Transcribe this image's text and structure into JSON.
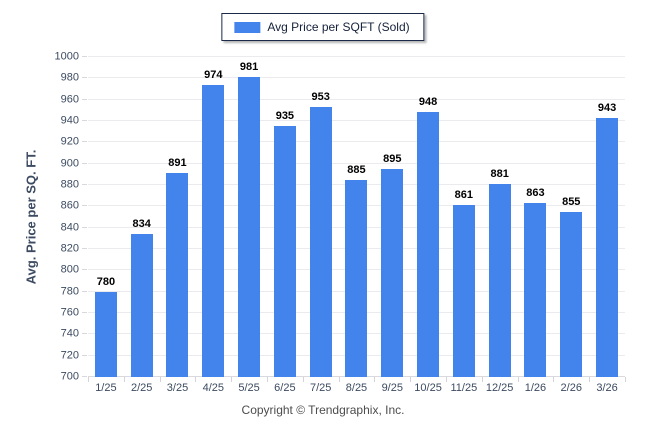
{
  "legend": {
    "swatch_color": "#4283ec"
  },
  "footer": {
    "copyright": "Copyright © Trendgraphix, Inc."
  },
  "colors": {
    "bar": "#4283ec",
    "gridline": "#ebebef",
    "axis_text": "#3c4b61",
    "value_text": "#000000",
    "legend_border": "#1b2a4a"
  },
  "chart_data": {
    "type": "bar",
    "title": "Avg Price per SQFT (Sold)",
    "legend": [
      "Avg Price per SQFT (Sold)"
    ],
    "legend_position": "top-center",
    "categories": [
      "1/25",
      "2/25",
      "3/25",
      "4/25",
      "5/25",
      "6/25",
      "7/25",
      "8/25",
      "9/25",
      "10/25",
      "11/25",
      "12/25",
      "1/26",
      "2/26",
      "3/26"
    ],
    "values": [
      780,
      834,
      891,
      974,
      981,
      935,
      953,
      885,
      895,
      948,
      861,
      881,
      863,
      855,
      943
    ],
    "xlabel": "",
    "ylabel": "Avg. Price per SQ. FT.",
    "ylim": [
      700,
      1000
    ],
    "yticks": [
      700,
      720,
      740,
      760,
      780,
      800,
      820,
      840,
      860,
      880,
      900,
      920,
      940,
      960,
      980,
      1000
    ],
    "grid": "horizontal",
    "value_labels": true,
    "bar_color": "#4283ec"
  }
}
